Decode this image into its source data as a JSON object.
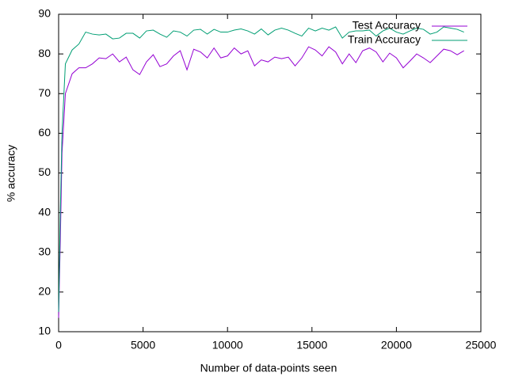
{
  "chart_data": {
    "type": "line",
    "xlabel": "Number of data-points seen",
    "ylabel": "% accuracy",
    "x": [
      0,
      100,
      200,
      400,
      800,
      1200,
      1600,
      2000,
      2400,
      2800,
      3200,
      3600,
      4000,
      4400,
      4800,
      5200,
      5600,
      6000,
      6400,
      6800,
      7200,
      7600,
      8000,
      8400,
      8800,
      9200,
      9600,
      10000,
      10400,
      10800,
      11200,
      11600,
      12000,
      12400,
      12800,
      13200,
      13600,
      14000,
      14400,
      14800,
      15200,
      15600,
      16000,
      16400,
      16800,
      17200,
      17600,
      18000,
      18400,
      18800,
      19200,
      19600,
      20000,
      20400,
      20800,
      21200,
      21600,
      22000,
      22400,
      22800,
      23200,
      23600,
      24000
    ],
    "series": [
      {
        "name": "Test Accuracy",
        "color": "#9400d3",
        "values": [
          13.5,
          33,
          55,
          70,
          75,
          76.5,
          76.5,
          77.5,
          79,
          78.8,
          80,
          78,
          79.2,
          76,
          74.8,
          78,
          79.8,
          76.8,
          77.5,
          79.5,
          80.8,
          76,
          81.2,
          80.5,
          79,
          81.5,
          79,
          79.5,
          81.5,
          80,
          80.8,
          77,
          78.5,
          78,
          79.2,
          78.8,
          79.2,
          77,
          79,
          81.8,
          81,
          79.5,
          81.8,
          80.5,
          77.5,
          80,
          77.8,
          80.8,
          81.5,
          80.5,
          78,
          80.2,
          79,
          76.5,
          78.2,
          80,
          79,
          77.8,
          79.5,
          81.2,
          80.8,
          79.8,
          80.8
        ]
      },
      {
        "name": "Train Accuracy",
        "color": "#009e73",
        "values": [
          15,
          40,
          60,
          77.5,
          81,
          82.5,
          85.5,
          85,
          84.8,
          85,
          83.8,
          84,
          85.2,
          85.2,
          84,
          85.8,
          86,
          85,
          84.2,
          85.8,
          85.5,
          84.5,
          86,
          86.2,
          85,
          86.2,
          85.5,
          85.5,
          86,
          86.3,
          85.8,
          85,
          86.3,
          84.8,
          86,
          86.5,
          86,
          85.2,
          84.5,
          86.5,
          85.8,
          86.5,
          86,
          86.8,
          84,
          85.5,
          85.8,
          85.8,
          86,
          84.5,
          85.8,
          86.5,
          85.5,
          85,
          85.8,
          86.5,
          86.2,
          85,
          85.5,
          86.8,
          86.5,
          86.2,
          85.5
        ]
      }
    ],
    "xlim": [
      0,
      25000
    ],
    "xticks": [
      0,
      5000,
      10000,
      15000,
      20000,
      25000
    ],
    "ylim": [
      10,
      90
    ],
    "yticks": [
      10,
      20,
      30,
      40,
      50,
      60,
      70,
      80,
      90
    ],
    "grid": false,
    "legend": "top-right"
  }
}
